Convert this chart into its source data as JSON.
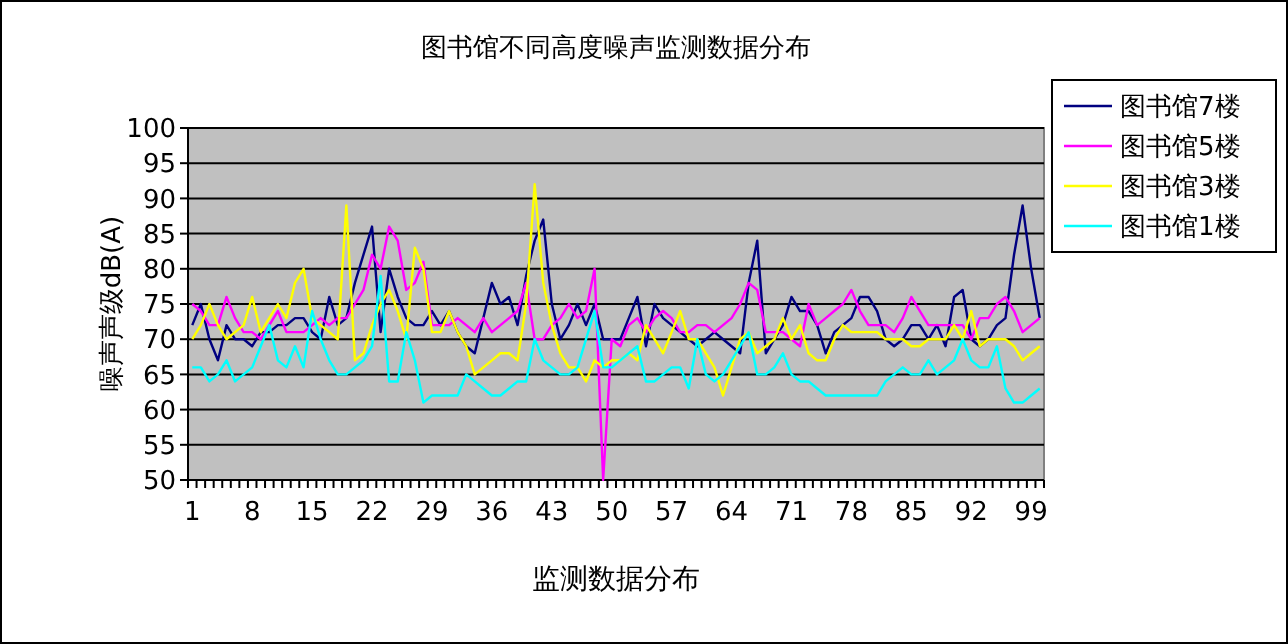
{
  "chart_data": {
    "type": "line",
    "title": "图书馆不同高度噪声监测数据分布",
    "xlabel": "监测数据分布",
    "ylabel": "噪声声级dB(A)",
    "categories": [
      "1",
      null,
      null,
      null,
      null,
      null,
      null,
      "8",
      null,
      null,
      null,
      null,
      null,
      null,
      "15",
      null,
      null,
      null,
      null,
      null,
      null,
      "22",
      null,
      null,
      null,
      null,
      null,
      null,
      "29",
      null,
      null,
      null,
      null,
      null,
      null,
      "36",
      null,
      null,
      null,
      null,
      null,
      null,
      "43",
      null,
      null,
      null,
      null,
      null,
      null,
      "50",
      null,
      null,
      null,
      null,
      null,
      null,
      "57",
      null,
      null,
      null,
      null,
      null,
      null,
      "64",
      null,
      null,
      null,
      null,
      null,
      null,
      "71",
      null,
      null,
      null,
      null,
      null,
      null,
      "78",
      null,
      null,
      null,
      null,
      null,
      null,
      "85",
      null,
      null,
      null,
      null,
      null,
      null,
      "92",
      null,
      null,
      null,
      null,
      null,
      null,
      "99",
      null
    ],
    "series": [
      {
        "name": "图书馆7楼",
        "color": "#000080",
        "values": [
          72,
          75,
          70,
          67,
          72,
          70,
          70,
          69,
          71,
          71,
          72,
          72,
          73,
          73,
          71,
          70,
          76,
          72,
          73,
          78,
          82,
          86,
          71,
          80,
          76,
          73,
          72,
          72,
          74,
          72,
          74,
          71,
          69,
          68,
          73,
          78,
          75,
          76,
          72,
          79,
          84,
          87,
          75,
          70,
          72,
          75,
          72,
          75,
          70,
          70,
          70,
          73,
          76,
          69,
          75,
          73,
          72,
          71,
          70,
          69,
          70,
          71,
          70,
          69,
          68,
          78,
          84,
          68,
          70,
          72,
          76,
          74,
          74,
          72,
          68,
          71,
          72,
          73,
          76,
          76,
          74,
          70,
          69,
          70,
          72,
          72,
          70,
          72,
          69,
          76,
          77,
          70,
          69,
          70,
          72,
          73,
          82,
          89,
          80,
          73
        ]
      },
      {
        "name": "图书馆5楼",
        "color": "#ff00ff",
        "values": [
          75,
          74,
          72,
          72,
          76,
          73,
          71,
          71,
          70,
          72,
          74,
          71,
          71,
          71,
          72,
          73,
          72,
          73,
          73,
          75,
          77,
          82,
          80,
          86,
          84,
          77,
          78,
          81,
          72,
          72,
          72,
          73,
          72,
          71,
          73,
          71,
          72,
          73,
          74,
          78,
          70,
          70,
          72,
          73,
          75,
          73,
          74,
          80,
          50,
          70,
          69,
          72,
          73,
          71,
          73,
          74,
          73,
          71,
          71,
          72,
          72,
          71,
          72,
          73,
          75,
          78,
          77,
          71,
          71,
          71,
          70,
          69,
          75,
          72,
          73,
          74,
          75,
          77,
          74,
          72,
          72,
          72,
          71,
          73,
          76,
          74,
          72,
          72,
          72,
          72,
          72,
          70,
          73,
          73,
          75,
          76,
          74,
          71,
          72,
          73
        ]
      },
      {
        "name": "图书馆3楼",
        "color": "#ffff00",
        "values": [
          70,
          72,
          75,
          72,
          70,
          71,
          72,
          76,
          71,
          73,
          75,
          73,
          78,
          80,
          73,
          72,
          71,
          70,
          89,
          67,
          68,
          72,
          75,
          77,
          74,
          70,
          83,
          80,
          71,
          71,
          74,
          71,
          69,
          65,
          66,
          67,
          68,
          68,
          67,
          75,
          92,
          78,
          72,
          68,
          66,
          66,
          64,
          67,
          66,
          67,
          67,
          68,
          67,
          72,
          70,
          68,
          71,
          74,
          70,
          70,
          68,
          66,
          62,
          66,
          70,
          71,
          68,
          69,
          70,
          73,
          70,
          72,
          68,
          67,
          67,
          70,
          72,
          71,
          71,
          71,
          71,
          70,
          70,
          70,
          69,
          69,
          70,
          70,
          70,
          72,
          70,
          74,
          69,
          70,
          70,
          70,
          69,
          67,
          68,
          69
        ]
      },
      {
        "name": "图书馆1楼",
        "color": "#00ffff",
        "values": [
          66,
          66,
          64,
          65,
          67,
          64,
          65,
          66,
          69,
          72,
          67,
          66,
          69,
          66,
          74,
          70,
          67,
          65,
          65,
          66,
          67,
          69,
          79,
          64,
          64,
          71,
          67,
          61,
          62,
          62,
          62,
          62,
          65,
          64,
          63,
          62,
          62,
          63,
          64,
          64,
          70,
          67,
          66,
          65,
          65,
          66,
          70,
          74,
          66,
          66,
          67,
          68,
          69,
          64,
          64,
          65,
          66,
          66,
          63,
          70,
          65,
          64,
          65,
          67,
          69,
          71,
          65,
          65,
          66,
          68,
          65,
          64,
          64,
          63,
          62,
          62,
          62,
          62,
          62,
          62,
          62,
          64,
          65,
          66,
          65,
          65,
          67,
          65,
          66,
          67,
          70,
          67,
          66,
          66,
          69,
          63,
          61,
          61,
          62,
          63
        ]
      }
    ],
    "ylim": [
      50,
      100
    ],
    "yticks": [
      50,
      55,
      60,
      65,
      70,
      75,
      80,
      85,
      90,
      95,
      100
    ],
    "grid": "y",
    "legend": "top right",
    "marker": "none",
    "line_style": "solid"
  }
}
